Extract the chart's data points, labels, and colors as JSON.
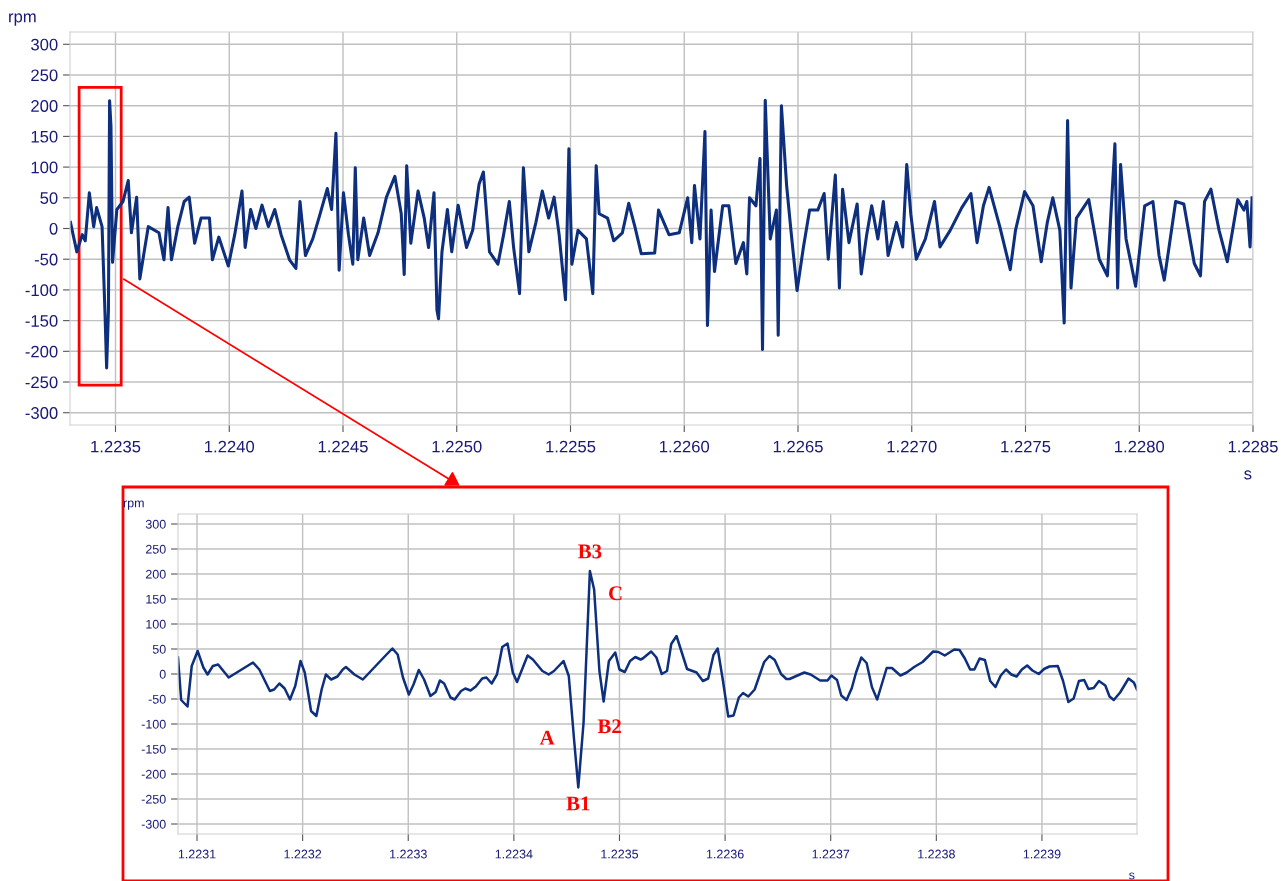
{
  "chart_data": [
    {
      "type": "line",
      "xlabel": "s",
      "ylabel": "rpm",
      "xlim": [
        1.2233,
        1.2285
      ],
      "ylim": [
        -320,
        320
      ],
      "xticks": [
        {
          "value": 1.2235,
          "label": "1.2235"
        },
        {
          "value": 1.224,
          "label": "1.2240"
        },
        {
          "value": 1.2245,
          "label": "1.2245"
        },
        {
          "value": 1.225,
          "label": "1.2250"
        },
        {
          "value": 1.2255,
          "label": "1.2255"
        },
        {
          "value": 1.226,
          "label": "1.2260"
        },
        {
          "value": 1.2265,
          "label": "1.2265"
        },
        {
          "value": 1.227,
          "label": "1.2270"
        },
        {
          "value": 1.2275,
          "label": "1.2275"
        },
        {
          "value": 1.228,
          "label": "1.2280"
        },
        {
          "value": 1.2285,
          "label": "1.2285"
        }
      ],
      "yticks": [
        -300,
        -250,
        -200,
        -150,
        -100,
        -50,
        0,
        50,
        100,
        150,
        200,
        250,
        300
      ],
      "grid": true,
      "marker": "none",
      "line_style": "solid",
      "series": [
        {
          "color": "#0d2f7d",
          "x": [
            1.223302,
            1.22333,
            1.223354,
            1.223367,
            1.223385,
            1.223404,
            1.223417,
            1.223441,
            1.223454,
            1.223461,
            1.223469,
            1.223474,
            1.22348,
            1.223487,
            1.223506,
            1.223533,
            1.223556,
            1.22357,
            1.223593,
            1.223607,
            1.223626,
            1.223644,
            1.223691,
            1.223713,
            1.223731,
            1.223746,
            1.223774,
            1.223802,
            1.223824,
            1.223848,
            1.223876,
            1.223913,
            1.223926,
            1.223954,
            1.223996,
            1.224024,
            1.224056,
            1.22407,
            1.224094,
            1.224117,
            1.224144,
            1.224172,
            1.2242,
            1.224228,
            1.224265,
            1.224293,
            1.224311,
            1.224335,
            1.224367,
            1.224394,
            1.224431,
            1.22445,
            1.224469,
            1.224483,
            1.224502,
            1.224524,
            1.224543,
            1.224554,
            1.224565,
            1.224591,
            1.224617,
            1.224654,
            1.224691,
            1.224728,
            1.224756,
            1.224769,
            1.22478,
            1.224798,
            1.22483,
            1.224857,
            1.224876,
            1.2249,
            1.224913,
            1.22492,
            1.224935,
            1.224959,
            1.224978,
            1.225006,
            1.225043,
            1.22507,
            1.225098,
            1.225117,
            1.225144,
            1.225181,
            1.225206,
            1.225231,
            1.22525,
            1.225276,
            1.225293,
            1.225317,
            1.225348,
            1.225376,
            1.225404,
            1.225428,
            1.22545,
            1.225478,
            1.225493,
            1.225506,
            1.225533,
            1.22557,
            1.225598,
            1.225613,
            1.225626,
            1.225663,
            1.22569,
            1.225728,
            1.225756,
            1.225783,
            1.225811,
            1.22587,
            1.225887,
            1.225933,
            1.225978,
            1.226015,
            1.226033,
            1.226045,
            1.226069,
            1.226091,
            1.226102,
            1.226118,
            1.226133,
            1.226169,
            1.226196,
            1.226227,
            1.22626,
            1.226275,
            1.226287,
            1.226315,
            1.226333,
            1.226344,
            1.226356,
            1.226378,
            1.226405,
            1.226413,
            1.226427,
            1.22645,
            1.226469,
            1.226496,
            1.226524,
            1.226551,
            1.226587,
            1.226615,
            1.226633,
            1.226664,
            1.226682,
            1.226696,
            1.226724,
            1.22676,
            1.226778,
            1.226802,
            1.226824,
            1.226851,
            1.226875,
            1.226896,
            1.226933,
            1.22696,
            1.226978,
            1.226996,
            1.22702,
            1.22706,
            1.2271,
            1.227124,
            1.227169,
            1.22722,
            1.22726,
            1.227287,
            1.227315,
            1.22734,
            1.227387,
            1.227433,
            1.227456,
            1.227496,
            1.227533,
            1.227569,
            1.227596,
            1.22762,
            1.227651,
            1.22767,
            1.227685,
            1.2277,
            1.227724,
            1.227778,
            1.227824,
            1.22786,
            1.227893,
            1.227905,
            1.227918,
            1.227942,
            1.227984,
            1.228024,
            1.22806,
            1.228087,
            1.22811,
            1.22816,
            1.228196,
            1.228242,
            1.228269,
            1.228287,
            1.228315,
            1.228351,
            1.228387,
            1.228433,
            1.22846,
            1.228473,
            1.228487,
            1.228496
          ],
          "values": [
            10,
            -38,
            -10,
            -20,
            58,
            3,
            34,
            3,
            -140,
            -227,
            -133,
            208,
            167,
            -55,
            31,
            44,
            78,
            -7,
            51,
            -82,
            -38,
            3,
            -7,
            -51,
            34,
            -51,
            3,
            44,
            51,
            -24,
            17,
            17,
            -51,
            -14,
            -61,
            -10,
            61,
            -31,
            31,
            0,
            38,
            3,
            31,
            -10,
            -51,
            -65,
            44,
            -44,
            -17,
            17,
            65,
            31,
            155,
            -68,
            58,
            -10,
            -58,
            99,
            -51,
            17,
            -44,
            -7,
            51,
            85,
            24,
            -75,
            102,
            -24,
            61,
            17,
            -31,
            58,
            -133,
            -147,
            -38,
            31,
            -38,
            38,
            -31,
            -3,
            72,
            92,
            -38,
            -58,
            -10,
            44,
            -31,
            -106,
            99,
            -38,
            10,
            61,
            17,
            51,
            -10,
            -116,
            130,
            -58,
            -3,
            -17,
            -106,
            102,
            24,
            17,
            -20,
            -7,
            41,
            3,
            -41,
            -40,
            30,
            -10,
            -7,
            50,
            -23,
            70,
            -17,
            158,
            -158,
            30,
            -70,
            37,
            37,
            -57,
            -23,
            -74,
            50,
            37,
            114,
            -197,
            209,
            -17,
            30,
            -174,
            200,
            70,
            -3,
            -101,
            -30,
            30,
            30,
            57,
            -50,
            87,
            -97,
            64,
            -23,
            40,
            -74,
            -10,
            37,
            -17,
            44,
            -44,
            10,
            -30,
            104,
            23,
            -50,
            -17,
            44,
            -30,
            -3,
            34,
            57,
            -23,
            37,
            67,
            3,
            -67,
            -3,
            60,
            37,
            -54,
            10,
            50,
            -3,
            -154,
            176,
            -97,
            17,
            47,
            -50,
            -77,
            138,
            -97,
            104,
            -17,
            -94,
            37,
            44,
            -44,
            -84,
            44,
            40,
            -57,
            -77,
            44,
            64,
            -3,
            -54,
            47,
            30,
            44,
            -30,
            50
          ]
        }
      ]
    },
    {
      "type": "line",
      "xlabel": "s",
      "ylabel": "rpm",
      "xlim": [
        1.223082,
        1.22399
      ],
      "ylim": [
        -320,
        320
      ],
      "xticks": [
        1.2231,
        1.2232,
        1.2233,
        1.2234,
        1.2235,
        1.2236,
        1.2237,
        1.2238,
        1.2239
      ],
      "yticks": [
        -300,
        -250,
        -200,
        -150,
        -100,
        -50,
        0,
        50,
        100,
        150,
        200,
        250,
        300
      ],
      "grid": true,
      "marker": "none",
      "line_style": "solid",
      "annotations": [
        {
          "text": "A",
          "x": 1.223457,
          "y": -131
        },
        {
          "text": "B1",
          "x": 1.223461,
          "y": -227
        },
        {
          "text": "B2",
          "x": 1.223466,
          "y": -97
        },
        {
          "text": "B3",
          "x": 1.223472,
          "y": 206
        },
        {
          "text": "C",
          "x": 1.223476,
          "y": 169
        }
      ],
      "series": [
        {
          "color": "#0d2f7d",
          "x": [
            1.223082,
            1.223085,
            1.223091,
            1.223095,
            1.2231006,
            1.223106,
            1.22311,
            1.223115,
            1.22312,
            1.22313,
            1.223153,
            1.223159,
            1.223169,
            1.223173,
            1.223178,
            1.223183,
            1.223188,
            1.223193,
            1.223198,
            1.223202,
            1.223208,
            1.223213,
            1.223218,
            1.223222,
            1.223227,
            1.223233,
            1.223238,
            1.223241,
            1.223249,
            1.223257,
            1.223279,
            1.223285,
            1.22329,
            1.223295,
            1.2233006,
            1.223305,
            1.22331,
            1.223315,
            1.223321,
            1.223326,
            1.22333,
            1.223334,
            1.22334,
            1.223344,
            1.22335,
            1.223354,
            1.223359,
            1.223364,
            1.22337,
            1.223374,
            1.223379,
            1.223384,
            1.223389,
            1.223394,
            1.223399,
            1.223403,
            1.223413,
            1.223418,
            1.223427,
            1.223433,
            1.223438,
            1.223447,
            1.223452,
            1.223457,
            1.223461,
            1.223466,
            1.223472,
            1.223476,
            1.223481,
            1.223485,
            1.22349,
            1.223496,
            1.2235,
            1.223505,
            1.22351,
            1.223515,
            1.22352,
            1.223522,
            1.22353,
            1.223535,
            1.22354,
            1.223545,
            1.223549,
            1.223554,
            1.223564,
            1.223573,
            1.223579,
            1.223584,
            1.223589,
            1.223593,
            1.223598,
            1.223603,
            1.223608,
            1.223613,
            1.223617,
            1.223622,
            1.223628,
            1.223637,
            1.223642,
            1.223647,
            1.223653,
            1.223658,
            1.223661,
            1.223675,
            1.223681,
            1.22369,
            1.223697,
            1.2237006,
            1.223706,
            1.22371,
            1.223715,
            1.22372,
            1.223724,
            1.223729,
            1.223734,
            1.223739,
            1.223744,
            1.223753,
            1.223758,
            1.223766,
            1.223772,
            1.223779,
            1.223787,
            1.223797,
            1.223802,
            1.223808,
            1.223817,
            1.223822,
            1.223827,
            1.223832,
            1.223836,
            1.223841,
            1.223846,
            1.223851,
            1.223856,
            1.223861,
            1.223866,
            1.223871,
            1.223876,
            1.223881,
            1.223886,
            1.223891,
            1.223897,
            1.223902,
            1.223907,
            1.223915,
            1.22392,
            1.223925,
            1.22393,
            1.223935,
            1.22394,
            1.223944,
            1.223949,
            1.223954,
            1.22396,
            1.223964,
            1.223968,
            1.223974,
            1.223982,
            1.223987,
            1.22399
          ],
          "values": [
            33,
            -52,
            -65,
            16,
            46,
            13,
            -1,
            16,
            19,
            -7,
            23,
            9,
            -34,
            -31,
            -19,
            -29,
            -51,
            -24,
            26,
            3,
            -74,
            -84,
            -31,
            -1,
            -11,
            -5,
            9,
            14,
            -1,
            -11,
            38,
            51,
            39,
            -7,
            -41,
            -21,
            8,
            -11,
            -44,
            -36,
            -13,
            -19,
            -47,
            -51,
            -34,
            -29,
            -33,
            -25,
            -9,
            -7,
            -19,
            -1,
            54,
            61,
            3,
            -16,
            37,
            29,
            6,
            -1,
            6,
            26,
            -4,
            -131,
            -227,
            -97,
            206,
            169,
            6,
            -55,
            26,
            43,
            9,
            4,
            26,
            34,
            29,
            31,
            45,
            33,
            0,
            6,
            60,
            76,
            10,
            3,
            -14,
            -9,
            38,
            51,
            -14,
            -85,
            -83,
            -47,
            -38,
            -45,
            -31,
            24,
            36,
            28,
            0,
            -10,
            -10,
            3,
            -1,
            -13,
            -13,
            -3,
            -12,
            -43,
            -52,
            -28,
            3,
            33,
            22,
            -26,
            -51,
            12,
            12,
            -3,
            3,
            14,
            24,
            45,
            44,
            37,
            49,
            48,
            31,
            9,
            9,
            31,
            28,
            -14,
            -26,
            -3,
            9,
            -1,
            -5,
            9,
            17,
            7,
            0,
            10,
            15,
            16,
            -14,
            -56,
            -49,
            -14,
            -12,
            -30,
            -28,
            -14,
            -23,
            -45,
            -52,
            -37,
            -9,
            -17,
            -31
          ]
        }
      ]
    }
  ]
}
